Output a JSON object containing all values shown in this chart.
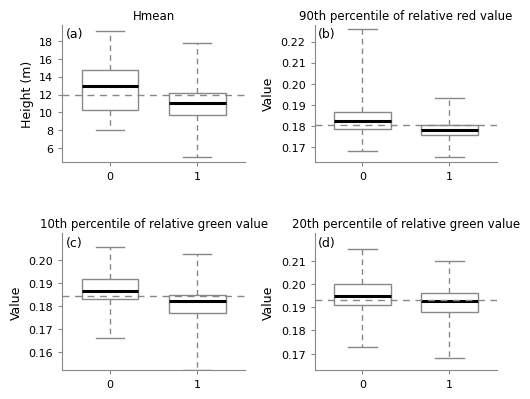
{
  "panels": [
    {
      "label": "(a)",
      "title": "Hmean",
      "ylabel": "Height (m)",
      "mean_line": 12.0,
      "ylim": [
        4.5,
        19.8
      ],
      "yticks": [
        6,
        8,
        10,
        12,
        14,
        16,
        18
      ],
      "groups": {
        "0": {
          "median": 12.9,
          "q1": 10.3,
          "q3": 14.7,
          "whislo": 8.0,
          "whishi": 19.1
        },
        "1": {
          "median": 11.1,
          "q1": 9.7,
          "q3": 12.2,
          "whislo": 5.0,
          "whishi": 17.8
        }
      }
    },
    {
      "label": "(b)",
      "title": "90th percentile of relative red value",
      "ylabel": "Value",
      "mean_line": 0.1805,
      "ylim": [
        0.163,
        0.228
      ],
      "yticks": [
        0.17,
        0.18,
        0.19,
        0.2,
        0.21,
        0.22
      ],
      "groups": {
        "0": {
          "median": 0.1825,
          "q1": 0.1785,
          "q3": 0.1865,
          "whislo": 0.168,
          "whishi": 0.226
        },
        "1": {
          "median": 0.178,
          "q1": 0.1755,
          "q3": 0.1805,
          "whislo": 0.165,
          "whishi": 0.193
        }
      }
    },
    {
      "label": "(c)",
      "title": "10th percentile of relative green value",
      "ylabel": "Value",
      "mean_line": 0.1845,
      "ylim": [
        0.152,
        0.212
      ],
      "yticks": [
        0.16,
        0.17,
        0.18,
        0.19,
        0.2
      ],
      "groups": {
        "0": {
          "median": 0.1865,
          "q1": 0.183,
          "q3": 0.192,
          "whislo": 0.166,
          "whishi": 0.206
        },
        "1": {
          "median": 0.182,
          "q1": 0.177,
          "q3": 0.185,
          "whislo": 0.152,
          "whishi": 0.203
        }
      }
    },
    {
      "label": "(d)",
      "title": "20th percentile of relative green value",
      "ylabel": "Value",
      "mean_line": 0.193,
      "ylim": [
        0.163,
        0.222
      ],
      "yticks": [
        0.17,
        0.18,
        0.19,
        0.2,
        0.21
      ],
      "groups": {
        "0": {
          "median": 0.195,
          "q1": 0.191,
          "q3": 0.2,
          "whislo": 0.173,
          "whishi": 0.215
        },
        "1": {
          "median": 0.1925,
          "q1": 0.188,
          "q3": 0.196,
          "whislo": 0.168,
          "whishi": 0.21
        }
      }
    }
  ],
  "median_color": "black",
  "whisker_color": "#888888",
  "cap_color": "#888888",
  "mean_line_color": "#888888",
  "box_edge_color": "#888888",
  "background_color": "white",
  "title_fontsize": 8.5,
  "label_fontsize": 9,
  "tick_fontsize": 8
}
